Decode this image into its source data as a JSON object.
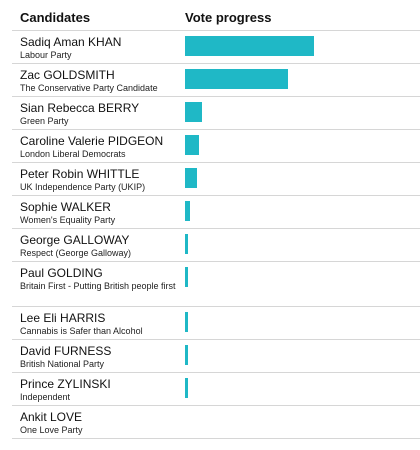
{
  "header": {
    "candidates_label": "Candidates",
    "progress_label": "Vote progress"
  },
  "colors": {
    "bar": "#1fb8c6",
    "divider": "#d6d6d6"
  },
  "chart_data": {
    "type": "bar",
    "orientation": "horizontal",
    "title": "",
    "xlabel": "",
    "ylabel": "",
    "xlim": [
      0,
      1
    ],
    "value_unit": "share of the largest bar (no scale printed)",
    "categories": [
      "Sadiq Aman KHAN",
      "Zac GOLDSMITH",
      "Sian Rebecca BERRY",
      "Caroline Valerie PIDGEON",
      "Peter Robin WHITTLE",
      "Sophie WALKER",
      "George GALLOWAY",
      "Paul GOLDING",
      "Lee Eli HARRIS",
      "David FURNESS",
      "Prince ZYLINSKI",
      "Ankit LOVE"
    ],
    "values": [
      1.0,
      0.8,
      0.13,
      0.105,
      0.09,
      0.04,
      0.02,
      0.02,
      0.02,
      0.02,
      0.02,
      0.0
    ],
    "rows": [
      {
        "name": "Sadiq Aman KHAN",
        "party": "Labour Party",
        "value": 1.0
      },
      {
        "name": "Zac GOLDSMITH",
        "party": "The Conservative Party Candidate",
        "value": 0.8
      },
      {
        "name": "Sian Rebecca BERRY",
        "party": "Green Party",
        "value": 0.13
      },
      {
        "name": "Caroline Valerie PIDGEON",
        "party": "London Liberal Democrats",
        "value": 0.105
      },
      {
        "name": "Peter Robin WHITTLE",
        "party": "UK Independence Party (UKIP)",
        "value": 0.09
      },
      {
        "name": "Sophie WALKER",
        "party": "Women's Equality Party",
        "value": 0.04
      },
      {
        "name": "George GALLOWAY",
        "party": "Respect (George Galloway)",
        "value": 0.02
      },
      {
        "name": "Paul GOLDING",
        "party": "Britain First - Putting British people first",
        "value": 0.02
      },
      {
        "name": "Lee Eli HARRIS",
        "party": "Cannabis is Safer than Alcohol",
        "value": 0.02
      },
      {
        "name": "David FURNESS",
        "party": "British National Party",
        "value": 0.02
      },
      {
        "name": "Prince ZYLINSKI",
        "party": "Independent",
        "value": 0.02
      },
      {
        "name": "Ankit LOVE",
        "party": "One Love Party",
        "value": 0.0
      }
    ],
    "grid": false,
    "legend": "none"
  }
}
